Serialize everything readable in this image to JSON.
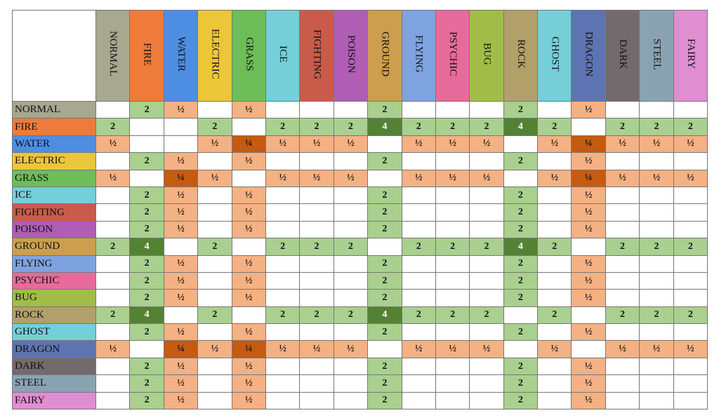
{
  "colors": {
    "NORMAL": "#a8a78f",
    "FIRE": "#ee7b3a",
    "WATER": "#4d8ee3",
    "ELECTRIC": "#ebc638",
    "GRASS": "#6dbd58",
    "ICE": "#74cfd8",
    "FIGHTING": "#c95b4b",
    "POISON": "#b05db6",
    "GROUND": "#cc9e4e",
    "FLYING": "#7ea3de",
    "PSYCHIC": "#e66b9a",
    "BUG": "#a1bd48",
    "ROCK": "#b2a06a",
    "GHOST": "#74cfd8",
    "DRAGON": "#5e74b2",
    "DARK": "#736a6e",
    "STEEL": "#8aa3b3",
    "FAIRY": "#df8ed2",
    "double": "#a9d08e",
    "quadruple": "#548235",
    "half": "#f4b183",
    "quarter": "#c55a11"
  },
  "types": [
    "NORMAL",
    "FIRE",
    "WATER",
    "ELECTRIC",
    "GRASS",
    "ICE",
    "FIGHTING",
    "POISON",
    "GROUND",
    "FLYING",
    "PSYCHIC",
    "BUG",
    "ROCK",
    "GHOST",
    "DRAGON",
    "DARK",
    "STEEL",
    "FAIRY"
  ],
  "rows": [
    {
      "type": "NORMAL",
      "cells": [
        "",
        "2",
        "½",
        "",
        "½",
        "",
        "",
        "",
        "2",
        "",
        "",
        "",
        "2",
        "",
        "½",
        "",
        "",
        ""
      ]
    },
    {
      "type": "FIRE",
      "cells": [
        "2",
        "",
        "",
        "2",
        "",
        "2",
        "2",
        "2",
        "4",
        "2",
        "2",
        "2",
        "4",
        "2",
        "",
        "2",
        "2",
        "2"
      ]
    },
    {
      "type": "WATER",
      "cells": [
        "½",
        "",
        "",
        "½",
        "¼",
        "½",
        "½",
        "½",
        "",
        "½",
        "½",
        "½",
        "",
        "½",
        "¼",
        "½",
        "½",
        "½"
      ]
    },
    {
      "type": "ELECTRIC",
      "cells": [
        "",
        "2",
        "½",
        "",
        "½",
        "",
        "",
        "",
        "2",
        "",
        "",
        "",
        "2",
        "",
        "½",
        "",
        "",
        ""
      ]
    },
    {
      "type": "GRASS",
      "cells": [
        "½",
        "",
        "¼",
        "½",
        "",
        "½",
        "½",
        "½",
        "",
        "½",
        "½",
        "½",
        "",
        "½",
        "¼",
        "½",
        "½",
        "½"
      ]
    },
    {
      "type": "ICE",
      "cells": [
        "",
        "2",
        "½",
        "",
        "½",
        "",
        "",
        "",
        "2",
        "",
        "",
        "",
        "2",
        "",
        "½",
        "",
        "",
        ""
      ]
    },
    {
      "type": "FIGHTING",
      "cells": [
        "",
        "2",
        "½",
        "",
        "½",
        "",
        "",
        "",
        "2",
        "",
        "",
        "",
        "2",
        "",
        "½",
        "",
        "",
        ""
      ]
    },
    {
      "type": "POISON",
      "cells": [
        "",
        "2",
        "½",
        "",
        "½",
        "",
        "",
        "",
        "2",
        "",
        "",
        "",
        "2",
        "",
        "½",
        "",
        "",
        ""
      ]
    },
    {
      "type": "GROUND",
      "cells": [
        "2",
        "4",
        "",
        "2",
        "",
        "2",
        "2",
        "2",
        "",
        "2",
        "2",
        "2",
        "4",
        "2",
        "",
        "2",
        "2",
        "2"
      ]
    },
    {
      "type": "FLYING",
      "cells": [
        "",
        "2",
        "½",
        "",
        "½",
        "",
        "",
        "",
        "2",
        "",
        "",
        "",
        "2",
        "",
        "½",
        "",
        "",
        ""
      ]
    },
    {
      "type": "PSYCHIC",
      "cells": [
        "",
        "2",
        "½",
        "",
        "½",
        "",
        "",
        "",
        "2",
        "",
        "",
        "",
        "2",
        "",
        "½",
        "",
        "",
        ""
      ]
    },
    {
      "type": "BUG",
      "cells": [
        "",
        "2",
        "½",
        "",
        "½",
        "",
        "",
        "",
        "2",
        "",
        "",
        "",
        "2",
        "",
        "½",
        "",
        "",
        ""
      ]
    },
    {
      "type": "ROCK",
      "cells": [
        "2",
        "4",
        "",
        "2",
        "",
        "2",
        "2",
        "2",
        "4",
        "2",
        "2",
        "2",
        "",
        "2",
        "",
        "2",
        "2",
        "2"
      ]
    },
    {
      "type": "GHOST",
      "cells": [
        "",
        "2",
        "½",
        "",
        "½",
        "",
        "",
        "",
        "2",
        "",
        "",
        "",
        "2",
        "",
        "½",
        "",
        "",
        ""
      ]
    },
    {
      "type": "DRAGON",
      "cells": [
        "½",
        "",
        "¼",
        "½",
        "¼",
        "½",
        "½",
        "½",
        "",
        "½",
        "½",
        "½",
        "",
        "½",
        "",
        "½",
        "½",
        "½"
      ]
    },
    {
      "type": "DARK",
      "cells": [
        "",
        "2",
        "½",
        "",
        "½",
        "",
        "",
        "",
        "2",
        "",
        "",
        "",
        "2",
        "",
        "½",
        "",
        "",
        ""
      ]
    },
    {
      "type": "STEEL",
      "cells": [
        "",
        "2",
        "½",
        "",
        "½",
        "",
        "",
        "",
        "2",
        "",
        "",
        "",
        "2",
        "",
        "½",
        "",
        "",
        ""
      ]
    },
    {
      "type": "FAIRY",
      "cells": [
        "",
        "2",
        "½",
        "",
        "½",
        "",
        "",
        "",
        "2",
        "",
        "",
        "",
        "2",
        "",
        "½",
        "",
        "",
        ""
      ]
    }
  ]
}
